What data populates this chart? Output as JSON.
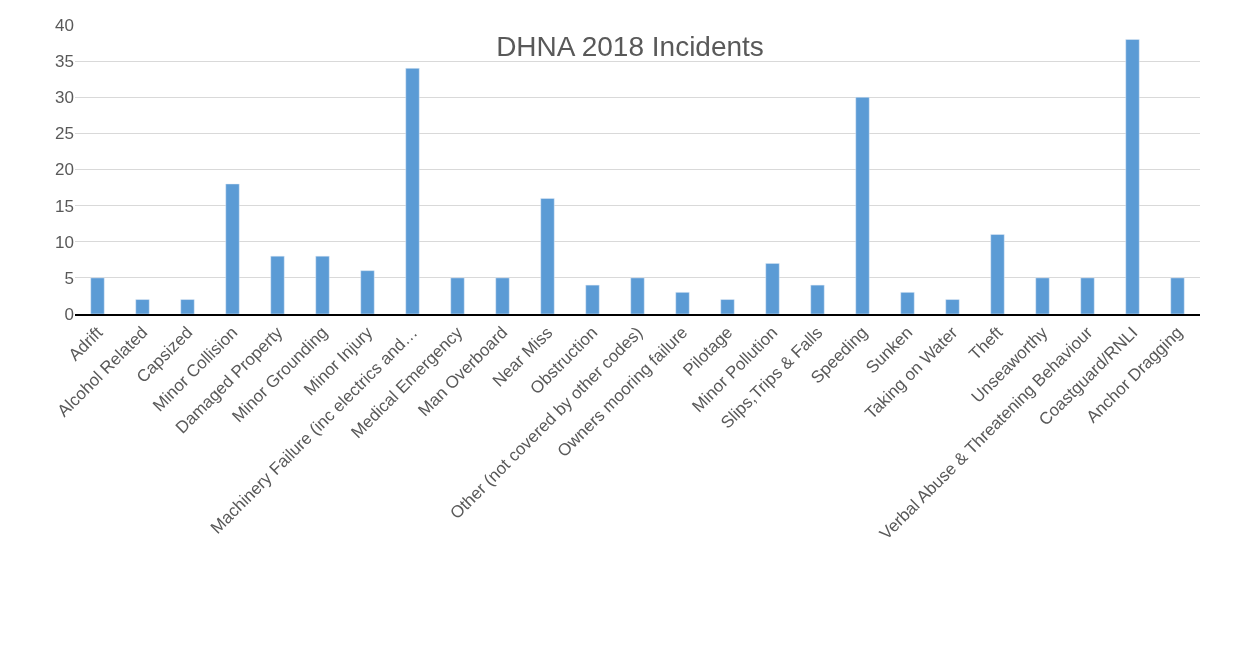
{
  "chart_data": {
    "type": "bar",
    "title": "DHNA 2018 Incidents",
    "categories": [
      "Adrift",
      "Alcohol Related",
      "Capsized",
      "Minor Collision",
      "Damaged Property",
      "Minor Grounding",
      "Minor Injury",
      "Machinery Failure (inc electrics and…",
      "Medical Emergency",
      "Man Overboard",
      "Near Miss",
      "Obstruction",
      "Other (not covered by other codes)",
      "Owners mooring failure",
      "Pilotage",
      "Minor Pollution",
      "Slips,Trips & Falls",
      "Speeding",
      "Sunken",
      "Taking on Water",
      "Theft",
      "Unseaworthy",
      "Verbal Abuse & Threatening Behaviour",
      "Coastguard/RNLI",
      "Anchor Dragging"
    ],
    "values": [
      5,
      2,
      2,
      18,
      8,
      8,
      6,
      34,
      5,
      5,
      16,
      4,
      5,
      3,
      2,
      7,
      4,
      30,
      3,
      2,
      11,
      5,
      5,
      38,
      5
    ],
    "color": "#5b9bd5",
    "ylim": [
      0,
      40
    ],
    "yticks": [
      0,
      5,
      10,
      15,
      20,
      25,
      30,
      35,
      40
    ],
    "grid": "y",
    "legend": false
  }
}
